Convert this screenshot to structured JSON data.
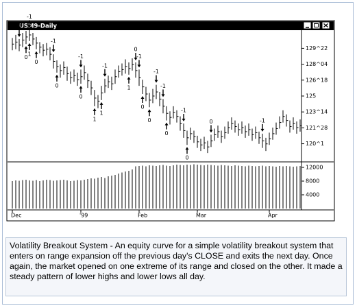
{
  "chart_data": {
    "type": "ohlc",
    "title": "USM9-Daily",
    "categories": [
      "Dec",
      null,
      null,
      null,
      null,
      null,
      null,
      null,
      null,
      null,
      null,
      null,
      null,
      null,
      null,
      null,
      null,
      null,
      null,
      null,
      "'99",
      null,
      null,
      null,
      null,
      null,
      null,
      null,
      null,
      null,
      null,
      null,
      null,
      null,
      null,
      null,
      null,
      "Feb",
      null,
      null,
      null,
      null,
      null,
      null,
      null,
      null,
      null,
      null,
      null,
      null,
      null,
      null,
      null,
      null,
      "Mar",
      null,
      null,
      null,
      null,
      null,
      null,
      null,
      null,
      null,
      null,
      null,
      null,
      null,
      null,
      null,
      null,
      null,
      null,
      null,
      null,
      "Apr",
      null,
      null,
      null,
      null,
      null,
      null,
      null,
      null,
      null
    ],
    "high": [
      130.7,
      131.0,
      130.6,
      131.2,
      131.4,
      131.5,
      131.2,
      130.8,
      130.3,
      130.1,
      130.2,
      129.8,
      129.1,
      128.5,
      128.1,
      128.4,
      127.9,
      127.4,
      127.6,
      127.3,
      127.6,
      128.0,
      127.2,
      126.5,
      125.6,
      125.1,
      126.0,
      126.7,
      127.0,
      126.9,
      127.6,
      128.0,
      128.2,
      128.6,
      128.3,
      128.7,
      128.3,
      127.6,
      126.6,
      125.9,
      125.3,
      125.7,
      126.1,
      125.4,
      124.7,
      124.0,
      123.5,
      124.0,
      123.6,
      123.0,
      122.3,
      121.6,
      121.9,
      121.6,
      121.1,
      120.8,
      121.0,
      120.6,
      121.2,
      121.8,
      122.1,
      121.6,
      122.0,
      122.5,
      122.9,
      122.6,
      122.3,
      122.5,
      122.1,
      122.3,
      121.8,
      122.0,
      121.5,
      121.3,
      120.9,
      121.4,
      121.9,
      122.4,
      123.0,
      123.6,
      123.2,
      122.6,
      122.9,
      122.5,
      122.7
    ],
    "low": [
      129.5,
      129.6,
      129.4,
      129.8,
      130.1,
      130.4,
      130.0,
      129.6,
      129.2,
      128.9,
      129.0,
      128.5,
      127.7,
      127.3,
      126.8,
      127.1,
      126.5,
      126.2,
      126.4,
      126.0,
      126.2,
      126.6,
      125.8,
      125.1,
      124.0,
      123.8,
      124.6,
      125.3,
      125.8,
      125.6,
      126.2,
      126.8,
      127.0,
      127.2,
      127.1,
      127.5,
      126.8,
      126.0,
      125.2,
      124.5,
      123.9,
      124.3,
      124.7,
      124.0,
      123.3,
      122.6,
      122.2,
      122.8,
      122.4,
      121.6,
      120.9,
      120.2,
      120.7,
      120.4,
      119.9,
      119.6,
      119.8,
      119.4,
      120.0,
      120.6,
      120.9,
      120.4,
      120.8,
      121.3,
      121.7,
      121.4,
      121.1,
      121.3,
      120.9,
      121.1,
      120.6,
      120.8,
      120.3,
      119.9,
      119.6,
      120.2,
      120.7,
      121.2,
      121.8,
      122.4,
      122.0,
      121.4,
      121.7,
      121.3,
      121.5
    ],
    "close": [
      130.1,
      130.3,
      130.0,
      130.5,
      130.8,
      131.0,
      130.6,
      130.2,
      129.8,
      129.5,
      129.6,
      129.1,
      128.4,
      127.9,
      127.5,
      127.8,
      127.2,
      126.8,
      127.0,
      126.6,
      126.9,
      127.3,
      126.5,
      125.8,
      124.8,
      124.5,
      125.3,
      126.0,
      126.4,
      126.2,
      126.9,
      127.4,
      127.6,
      127.9,
      127.7,
      128.1,
      127.5,
      126.8,
      125.9,
      125.2,
      124.6,
      125.0,
      125.4,
      124.7,
      124.0,
      123.3,
      122.9,
      123.4,
      123.0,
      122.3,
      121.6,
      120.9,
      121.3,
      121.0,
      120.5,
      120.2,
      120.4,
      120.0,
      120.6,
      121.2,
      121.5,
      121.0,
      121.4,
      121.9,
      122.3,
      122.0,
      121.7,
      121.9,
      121.5,
      121.7,
      121.2,
      121.4,
      120.9,
      120.6,
      120.3,
      120.8,
      121.3,
      121.8,
      122.4,
      123.0,
      122.6,
      122.0,
      122.3,
      121.9,
      122.1
    ],
    "volume": [
      8000,
      8200,
      8100,
      8300,
      8400,
      8200,
      8100,
      8300,
      8000,
      8200,
      8400,
      8300,
      8100,
      8200,
      8300,
      8400,
      8200,
      8000,
      8100,
      8300,
      8200,
      8400,
      8600,
      8800,
      8700,
      9000,
      9200,
      8900,
      9400,
      9600,
      9800,
      10200,
      10500,
      10800,
      11000,
      11400,
      12300,
      12400,
      12500,
      12300,
      12600,
      12500,
      12400,
      12600,
      12700,
      12500,
      12400,
      12600,
      12800,
      12700,
      12600,
      12800,
      12700,
      12900,
      12800,
      12700,
      12600,
      12800,
      12700,
      12600,
      12500,
      12700,
      12600,
      12500,
      12400,
      12600,
      12500,
      12400,
      12300,
      12500,
      12400,
      12300,
      12400,
      12500,
      12300,
      12400,
      12300,
      12200,
      12400,
      12300,
      12400,
      12300,
      12200,
      12300,
      12400
    ],
    "color": "#000000",
    "ylim": [
      118.8,
      131.4
    ],
    "yticks": [
      {
        "value": 129.6875,
        "label": "129^22"
      },
      {
        "value": 128.125,
        "label": "128^04"
      },
      {
        "value": 126.5625,
        "label": "126^18"
      },
      125,
      {
        "value": 123.4375,
        "label": "123^14"
      },
      {
        "value": 121.875,
        "label": "121^28"
      },
      {
        "value": 120.3125,
        "label": "120^1"
      }
    ],
    "volume_lim": [
      0,
      13200
    ],
    "volume_ticks": [
      12000,
      8000,
      4000
    ],
    "annotations": [
      {
        "text": "-1",
        "bar": 2,
        "side": "above"
      },
      {
        "text": "-1",
        "bar": 5,
        "side": "above"
      },
      {
        "text": "0",
        "bar": 4,
        "side": "below"
      },
      {
        "text": "1",
        "bar": 5,
        "side": "below"
      },
      {
        "text": "0",
        "bar": 7,
        "side": "below"
      },
      {
        "text": "-1",
        "bar": 12,
        "side": "above"
      },
      {
        "text": "0",
        "bar": 13,
        "side": "below"
      },
      {
        "text": "-1",
        "bar": 20,
        "side": "above"
      },
      {
        "text": "0",
        "bar": 20,
        "side": "below"
      },
      {
        "text": "1",
        "bar": 24,
        "side": "below"
      },
      {
        "text": "1",
        "bar": 26,
        "side": "below"
      },
      {
        "text": "-1",
        "bar": 27,
        "side": "above"
      },
      {
        "text": "1",
        "bar": 34,
        "side": "below"
      },
      {
        "text": "0",
        "bar": 36,
        "side": "above"
      },
      {
        "text": "-1",
        "bar": 37,
        "side": "above"
      },
      {
        "text": "0",
        "bar": 38,
        "side": "below"
      },
      {
        "text": "0",
        "bar": 40,
        "side": "below"
      },
      {
        "text": "-1",
        "bar": 42,
        "side": "above"
      },
      {
        "text": "-1",
        "bar": 44,
        "side": "above"
      },
      {
        "text": "0",
        "bar": 45,
        "side": "below"
      },
      {
        "text": "-1",
        "bar": 50,
        "side": "above"
      },
      {
        "text": "0",
        "bar": 51,
        "side": "below"
      },
      {
        "text": "0",
        "bar": 58,
        "side": "above"
      },
      {
        "text": "-1",
        "bar": 73,
        "side": "above"
      }
    ]
  },
  "caption": "Volatility Breakout System - An equity curve for a simple volatility breakout system that enters on range expansion off the previous day's CLOSE and exits the next day. Once again, the market opened on one extreme of its range and closed on the other. It made a steady pattern of lower highs and lower lows all day."
}
